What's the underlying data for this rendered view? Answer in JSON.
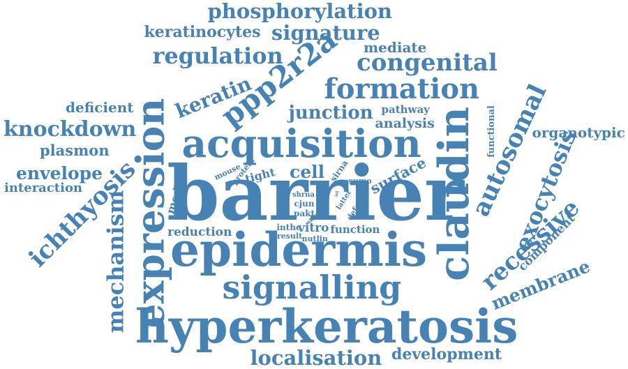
{
  "palette": {
    "word_color": "#4682b4",
    "background": "#ffffff"
  },
  "words": [
    {
      "text": "barrier"
    },
    {
      "text": "epidermis"
    },
    {
      "text": "hyperkeratosis"
    },
    {
      "text": "acquisition"
    },
    {
      "text": "expression"
    },
    {
      "text": "claudin"
    },
    {
      "text": "signalling"
    },
    {
      "text": "formation"
    },
    {
      "text": "congenital"
    },
    {
      "text": "regulation"
    },
    {
      "text": "ppp2r2a"
    },
    {
      "text": "phosphorylation"
    },
    {
      "text": "keratinocytes"
    },
    {
      "text": "signature"
    },
    {
      "text": "mediate"
    },
    {
      "text": "keratin"
    },
    {
      "text": "junction"
    },
    {
      "text": "deficient"
    },
    {
      "text": "knockdown"
    },
    {
      "text": "plasmon"
    },
    {
      "text": "envelope"
    },
    {
      "text": "interaction"
    },
    {
      "text": "ichthyosis"
    },
    {
      "text": "mechanism"
    },
    {
      "text": "autosomal"
    },
    {
      "text": "exocytosis"
    },
    {
      "text": "recessive"
    },
    {
      "text": "membrane"
    },
    {
      "text": "component"
    },
    {
      "text": "organotypic"
    },
    {
      "text": "functional"
    },
    {
      "text": "localisation"
    },
    {
      "text": "development"
    },
    {
      "text": "reduction"
    },
    {
      "text": "model"
    },
    {
      "text": "pathway"
    },
    {
      "text": "analysis"
    },
    {
      "text": "cell"
    },
    {
      "text": "tight"
    },
    {
      "text": "mouse"
    },
    {
      "text": "protein"
    },
    {
      "text": "sirna"
    },
    {
      "text": "surface"
    },
    {
      "text": "sumo"
    },
    {
      "text": "shrna"
    },
    {
      "text": "cjun"
    },
    {
      "text": "pakt"
    },
    {
      "text": "latter"
    },
    {
      "text": "defect"
    },
    {
      "text": "skin"
    },
    {
      "text": "ist"
    },
    {
      "text": "inthe"
    },
    {
      "text": "vitro"
    },
    {
      "text": "function"
    },
    {
      "text": "result"
    },
    {
      "text": "nutlin"
    }
  ]
}
